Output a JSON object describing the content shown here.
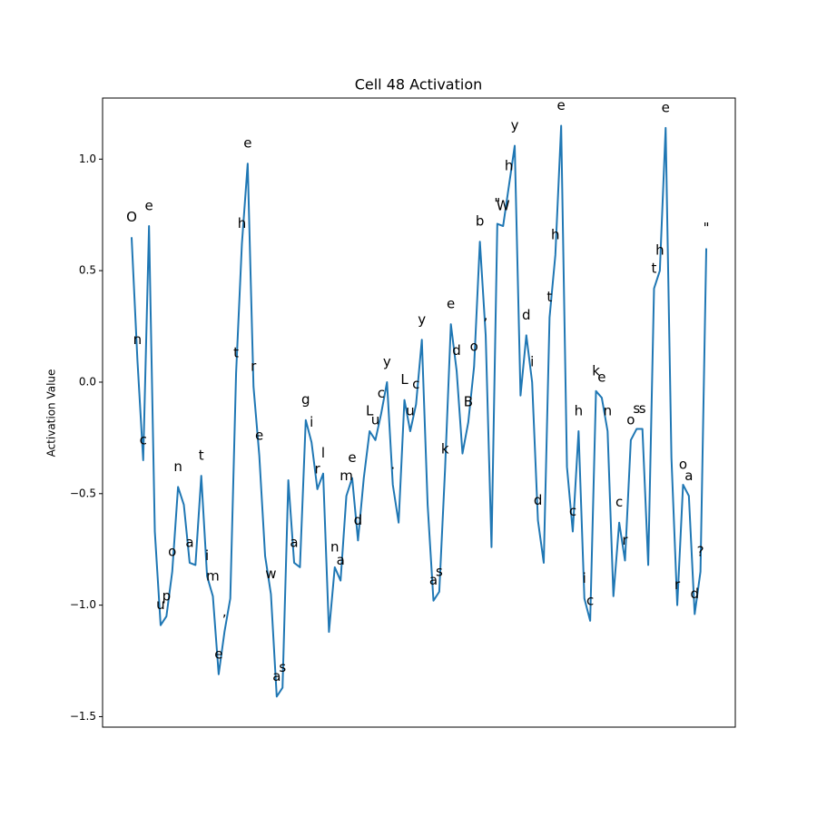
{
  "chart_data": {
    "type": "line",
    "title": "Cell 48 Activation",
    "ylabel": "Activation Value",
    "color": "#1f77b4",
    "categories": [
      "O",
      "n",
      "c",
      "e",
      " ",
      "u",
      "p",
      "o",
      "n",
      " ",
      "a",
      " ",
      "t",
      "i",
      "m",
      "e",
      ",",
      " ",
      "t",
      "h",
      "e",
      "r",
      "e",
      " ",
      "w",
      "a",
      "s",
      " ",
      "a",
      " ",
      "g",
      "i",
      "r",
      "l",
      " ",
      "n",
      "a",
      "m",
      "e",
      "d",
      " ",
      "L",
      "u",
      "c",
      "y",
      ".",
      " ",
      "L",
      "u",
      "c",
      "y",
      " ",
      "a",
      "s",
      "k",
      "e",
      "d",
      " ",
      "B",
      "o",
      "b",
      ",",
      " ",
      "\"",
      "W",
      "h",
      "y",
      " ",
      "d",
      "i",
      "d",
      " ",
      "t",
      "h",
      "e",
      " ",
      "c",
      "h",
      "i",
      "c",
      "k",
      "e",
      "n",
      " ",
      "c",
      "r",
      "o",
      "s",
      "s",
      " ",
      "t",
      "h",
      "e",
      " ",
      "r",
      "o",
      "a",
      "d",
      "?",
      "\""
    ],
    "values": [
      0.65,
      0.1,
      -0.35,
      0.7,
      -0.67,
      -1.09,
      -1.05,
      -0.85,
      -0.47,
      -0.55,
      -0.81,
      -0.82,
      -0.42,
      -0.87,
      -0.96,
      -1.31,
      -1.12,
      -0.97,
      0.04,
      0.62,
      0.98,
      -0.02,
      -0.33,
      -0.78,
      -0.95,
      -1.41,
      -1.37,
      -0.44,
      -0.81,
      -0.83,
      -0.17,
      -0.27,
      -0.48,
      -0.41,
      -1.12,
      -0.83,
      -0.89,
      -0.51,
      -0.43,
      -0.71,
      -0.43,
      -0.22,
      -0.26,
      -0.14,
      0.0,
      -0.46,
      -0.63,
      -0.08,
      -0.22,
      -0.1,
      0.19,
      -0.55,
      -0.98,
      -0.94,
      -0.39,
      0.26,
      0.05,
      -0.32,
      -0.18,
      0.07,
      0.63,
      0.21,
      -0.74,
      0.71,
      0.7,
      0.88,
      1.06,
      -0.06,
      0.21,
      0.0,
      -0.62,
      -0.81,
      0.29,
      0.57,
      1.15,
      -0.38,
      -0.67,
      -0.22,
      -0.97,
      -1.07,
      -0.04,
      -0.07,
      -0.22,
      -0.96,
      -0.63,
      -0.8,
      -0.26,
      -0.21,
      -0.21,
      -0.82,
      0.42,
      0.5,
      1.14,
      -0.34,
      -1.0,
      -0.46,
      -0.51,
      -1.04,
      -0.85,
      0.6
    ],
    "ylim": [
      -1.547,
      1.274
    ],
    "yticks": [
      {
        "value": -1.5,
        "label": "−1.5"
      },
      {
        "value": -1.0,
        "label": "−1.0"
      },
      {
        "value": -0.5,
        "label": "−0.5"
      },
      {
        "value": 0.0,
        "label": "0.0"
      },
      0.5,
      {
        "value": 1.0,
        "label": "1.0"
      }
    ]
  }
}
